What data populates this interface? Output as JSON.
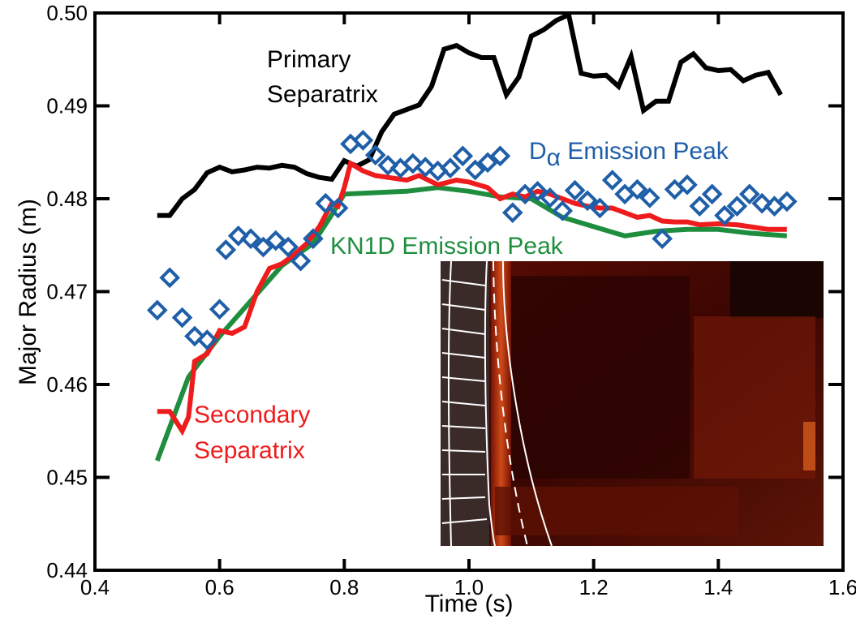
{
  "chart_data": {
    "type": "line",
    "xlabel": "Time (s)",
    "ylabel": "Major Radius (m)",
    "xlim": [
      0.4,
      1.6
    ],
    "ylim": [
      0.44,
      0.5
    ],
    "xticks": [
      "0.4",
      "0.6",
      "0.8",
      "1.0",
      "1.2",
      "1.4",
      "1.6"
    ],
    "yticks": [
      "0.44",
      "0.45",
      "0.46",
      "0.47",
      "0.48",
      "0.49",
      "0.50"
    ],
    "grid": false,
    "series": [
      {
        "name": "Primary Separatrix",
        "kind": "line",
        "color": "#000000",
        "x": [
          0.5,
          0.52,
          0.54,
          0.56,
          0.58,
          0.6,
          0.62,
          0.64,
          0.66,
          0.68,
          0.7,
          0.72,
          0.74,
          0.76,
          0.78,
          0.8,
          0.82,
          0.84,
          0.86,
          0.88,
          0.9,
          0.92,
          0.94,
          0.96,
          0.98,
          1.0,
          1.02,
          1.04,
          1.06,
          1.08,
          1.1,
          1.12,
          1.14,
          1.16,
          1.18,
          1.2,
          1.22,
          1.24,
          1.26,
          1.28,
          1.3,
          1.32,
          1.34,
          1.36,
          1.38,
          1.4,
          1.42,
          1.44,
          1.46,
          1.48,
          1.5
        ],
        "y": [
          0.4782,
          0.4782,
          0.48,
          0.481,
          0.4828,
          0.4834,
          0.4829,
          0.4831,
          0.4834,
          0.4833,
          0.4836,
          0.4834,
          0.4827,
          0.4823,
          0.4821,
          0.4841,
          0.4835,
          0.4842,
          0.4872,
          0.4891,
          0.4896,
          0.4901,
          0.4921,
          0.4961,
          0.4965,
          0.4957,
          0.4952,
          0.4952,
          0.4912,
          0.4931,
          0.4975,
          0.4982,
          0.4992,
          0.4998,
          0.4935,
          0.4932,
          0.4933,
          0.4921,
          0.4953,
          0.4895,
          0.4905,
          0.4905,
          0.4947,
          0.4956,
          0.4941,
          0.4938,
          0.4939,
          0.4927,
          0.4933,
          0.4936,
          0.4912
        ]
      },
      {
        "name": "Dα Emission Peak",
        "name_main": "D",
        "name_sub": "α",
        "name_rest": " Emission Peak",
        "kind": "marker",
        "color": "#1f5fa8",
        "x": [
          0.5,
          0.52,
          0.54,
          0.56,
          0.58,
          0.6,
          0.61,
          0.63,
          0.65,
          0.67,
          0.69,
          0.71,
          0.73,
          0.75,
          0.77,
          0.79,
          0.81,
          0.83,
          0.85,
          0.87,
          0.89,
          0.91,
          0.93,
          0.95,
          0.97,
          0.99,
          1.01,
          1.03,
          1.05,
          1.07,
          1.09,
          1.11,
          1.13,
          1.15,
          1.17,
          1.19,
          1.21,
          1.23,
          1.25,
          1.27,
          1.29,
          1.31,
          1.33,
          1.35,
          1.37,
          1.39,
          1.41,
          1.43,
          1.45,
          1.47,
          1.49,
          1.51
        ],
        "y": [
          0.468,
          0.4715,
          0.4672,
          0.4652,
          0.4648,
          0.4681,
          0.4745,
          0.476,
          0.4757,
          0.4748,
          0.4755,
          0.4748,
          0.4733,
          0.4757,
          0.4795,
          0.479,
          0.4859,
          0.4863,
          0.4847,
          0.4836,
          0.4833,
          0.4838,
          0.4834,
          0.483,
          0.4833,
          0.4846,
          0.4831,
          0.4839,
          0.4846,
          0.4785,
          0.4805,
          0.4808,
          0.4801,
          0.4787,
          0.4809,
          0.4798,
          0.479,
          0.482,
          0.4805,
          0.481,
          0.4801,
          0.4757,
          0.481,
          0.4815,
          0.4792,
          0.4805,
          0.4782,
          0.4792,
          0.4805,
          0.4795,
          0.4792,
          0.4797
        ]
      },
      {
        "name": "Secondary Separatrix",
        "kind": "line",
        "color": "#ee1c1c",
        "x": [
          0.5,
          0.52,
          0.54,
          0.55,
          0.56,
          0.58,
          0.6,
          0.62,
          0.64,
          0.66,
          0.68,
          0.7,
          0.72,
          0.74,
          0.76,
          0.78,
          0.79,
          0.8,
          0.81,
          0.83,
          0.85,
          0.88,
          0.9,
          0.92,
          0.95,
          0.98,
          1.0,
          1.03,
          1.05,
          1.07,
          1.09,
          1.11,
          1.13,
          1.15,
          1.17,
          1.19,
          1.21,
          1.23,
          1.25,
          1.27,
          1.29,
          1.31,
          1.33,
          1.35,
          1.37,
          1.4,
          1.43,
          1.46,
          1.48,
          1.51
        ],
        "y": [
          0.4571,
          0.4571,
          0.455,
          0.4565,
          0.4625,
          0.4633,
          0.4658,
          0.4655,
          0.4662,
          0.47,
          0.4725,
          0.473,
          0.474,
          0.4752,
          0.477,
          0.4795,
          0.4792,
          0.4812,
          0.4838,
          0.483,
          0.4825,
          0.4822,
          0.482,
          0.4825,
          0.4815,
          0.482,
          0.4818,
          0.4812,
          0.48,
          0.4805,
          0.4802,
          0.4808,
          0.4805,
          0.48,
          0.4795,
          0.4792,
          0.479,
          0.479,
          0.4785,
          0.478,
          0.4782,
          0.4776,
          0.4775,
          0.4775,
          0.4772,
          0.4773,
          0.4772,
          0.4769,
          0.4767,
          0.4767
        ]
      },
      {
        "name": "KN1D Emission Peak",
        "kind": "line",
        "color": "#1e8e3e",
        "x": [
          0.5,
          0.55,
          0.6,
          0.65,
          0.7,
          0.75,
          0.78,
          0.8,
          0.9,
          0.95,
          1.0,
          1.05,
          1.1,
          1.15,
          1.2,
          1.25,
          1.3,
          1.35,
          1.4,
          1.45,
          1.51
        ],
        "y": [
          0.4518,
          0.4608,
          0.4652,
          0.469,
          0.4728,
          0.4752,
          0.4783,
          0.4805,
          0.4808,
          0.4812,
          0.4808,
          0.4802,
          0.48,
          0.478,
          0.477,
          0.476,
          0.4765,
          0.4767,
          0.4767,
          0.4763,
          0.476
        ]
      }
    ],
    "annotations": {
      "primary_line1": "Primary",
      "primary_line2": "Separatrix",
      "secondary_line1": "Secondary",
      "secondary_line2": "Separatrix",
      "kn1d": "KN1D Emission Peak"
    }
  },
  "inset": {
    "image": "camera-frame-image",
    "background_color": "#3a0702"
  }
}
